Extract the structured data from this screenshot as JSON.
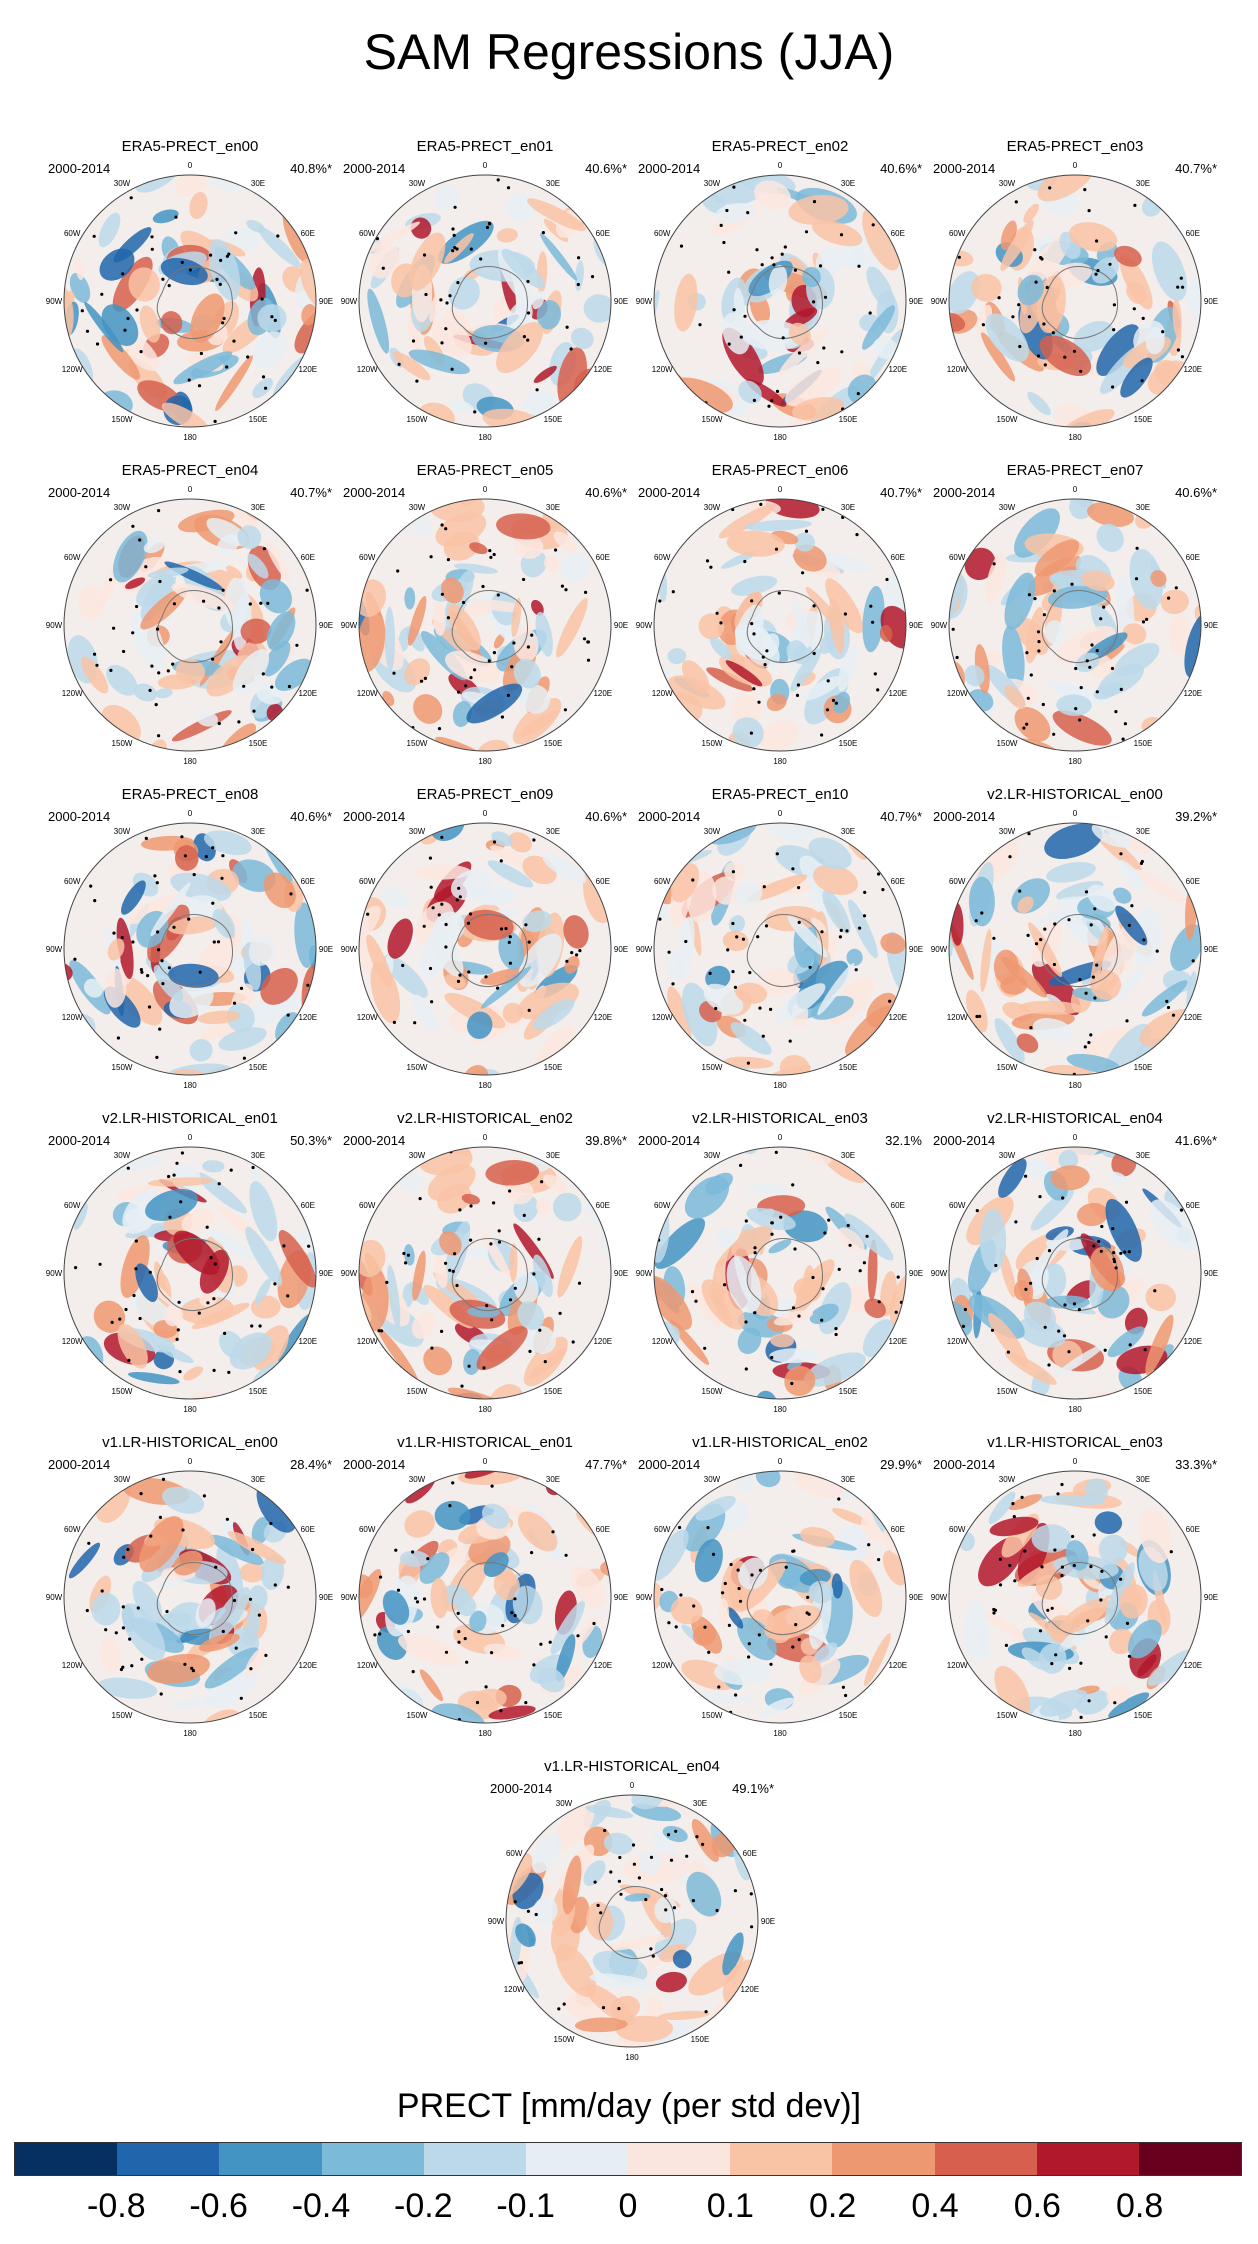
{
  "title": "SAM Regressions (JJA)",
  "colorbar": {
    "label": "PRECT [mm/day (per std dev)]",
    "colors": [
      "#053061",
      "#2166ac",
      "#4393c3",
      "#7bbad9",
      "#bcd9ea",
      "#e6eef4",
      "#fbe6df",
      "#f9c3a6",
      "#ee9871",
      "#d6604d",
      "#b2182b",
      "#67001f"
    ],
    "ticks": [
      "-0.8",
      "-0.6",
      "-0.4",
      "-0.2",
      "-0.1",
      "0",
      "0.1",
      "0.2",
      "0.4",
      "0.6",
      "0.8"
    ]
  },
  "lon_labels": {
    "top": "0",
    "n30e": "30E",
    "n60e": "60E",
    "e": "90E",
    "s120e": "120E",
    "s150e": "150E",
    "bottom": "180",
    "s150w": "150W",
    "s120w": "120W",
    "w": "90W",
    "n60w": "60W",
    "n30w": "30W"
  },
  "panels": [
    {
      "name": "ERA5-PRECT_en00",
      "period": "2000-2014",
      "pct": "40.8%*",
      "seed": 1
    },
    {
      "name": "ERA5-PRECT_en01",
      "period": "2000-2014",
      "pct": "40.6%*",
      "seed": 2
    },
    {
      "name": "ERA5-PRECT_en02",
      "period": "2000-2014",
      "pct": "40.6%*",
      "seed": 3
    },
    {
      "name": "ERA5-PRECT_en03",
      "period": "2000-2014",
      "pct": "40.7%*",
      "seed": 4
    },
    {
      "name": "ERA5-PRECT_en04",
      "period": "2000-2014",
      "pct": "40.7%*",
      "seed": 5
    },
    {
      "name": "ERA5-PRECT_en05",
      "period": "2000-2014",
      "pct": "40.6%*",
      "seed": 6
    },
    {
      "name": "ERA5-PRECT_en06",
      "period": "2000-2014",
      "pct": "40.7%*",
      "seed": 7
    },
    {
      "name": "ERA5-PRECT_en07",
      "period": "2000-2014",
      "pct": "40.6%*",
      "seed": 8
    },
    {
      "name": "ERA5-PRECT_en08",
      "period": "2000-2014",
      "pct": "40.6%*",
      "seed": 9
    },
    {
      "name": "ERA5-PRECT_en09",
      "period": "2000-2014",
      "pct": "40.6%*",
      "seed": 10
    },
    {
      "name": "ERA5-PRECT_en10",
      "period": "2000-2014",
      "pct": "40.7%*",
      "seed": 11
    },
    {
      "name": "v2.LR-HISTORICAL_en00",
      "period": "2000-2014",
      "pct": "39.2%*",
      "seed": 12
    },
    {
      "name": "v2.LR-HISTORICAL_en01",
      "period": "2000-2014",
      "pct": "50.3%*",
      "seed": 13
    },
    {
      "name": "v2.LR-HISTORICAL_en02",
      "period": "2000-2014",
      "pct": "39.8%*",
      "seed": 14
    },
    {
      "name": "v2.LR-HISTORICAL_en03",
      "period": "2000-2014",
      "pct": "32.1%",
      "seed": 15
    },
    {
      "name": "v2.LR-HISTORICAL_en04",
      "period": "2000-2014",
      "pct": "41.6%*",
      "seed": 16
    },
    {
      "name": "v1.LR-HISTORICAL_en00",
      "period": "2000-2014",
      "pct": "28.4%*",
      "seed": 17
    },
    {
      "name": "v1.LR-HISTORICAL_en01",
      "period": "2000-2014",
      "pct": "47.7%*",
      "seed": 18
    },
    {
      "name": "v1.LR-HISTORICAL_en02",
      "period": "2000-2014",
      "pct": "29.9%*",
      "seed": 19
    },
    {
      "name": "v1.LR-HISTORICAL_en03",
      "period": "2000-2014",
      "pct": "33.3%*",
      "seed": 20
    },
    {
      "name": "v1.LR-HISTORICAL_en04",
      "period": "2000-2014",
      "pct": "49.1%*",
      "seed": 21
    }
  ]
}
